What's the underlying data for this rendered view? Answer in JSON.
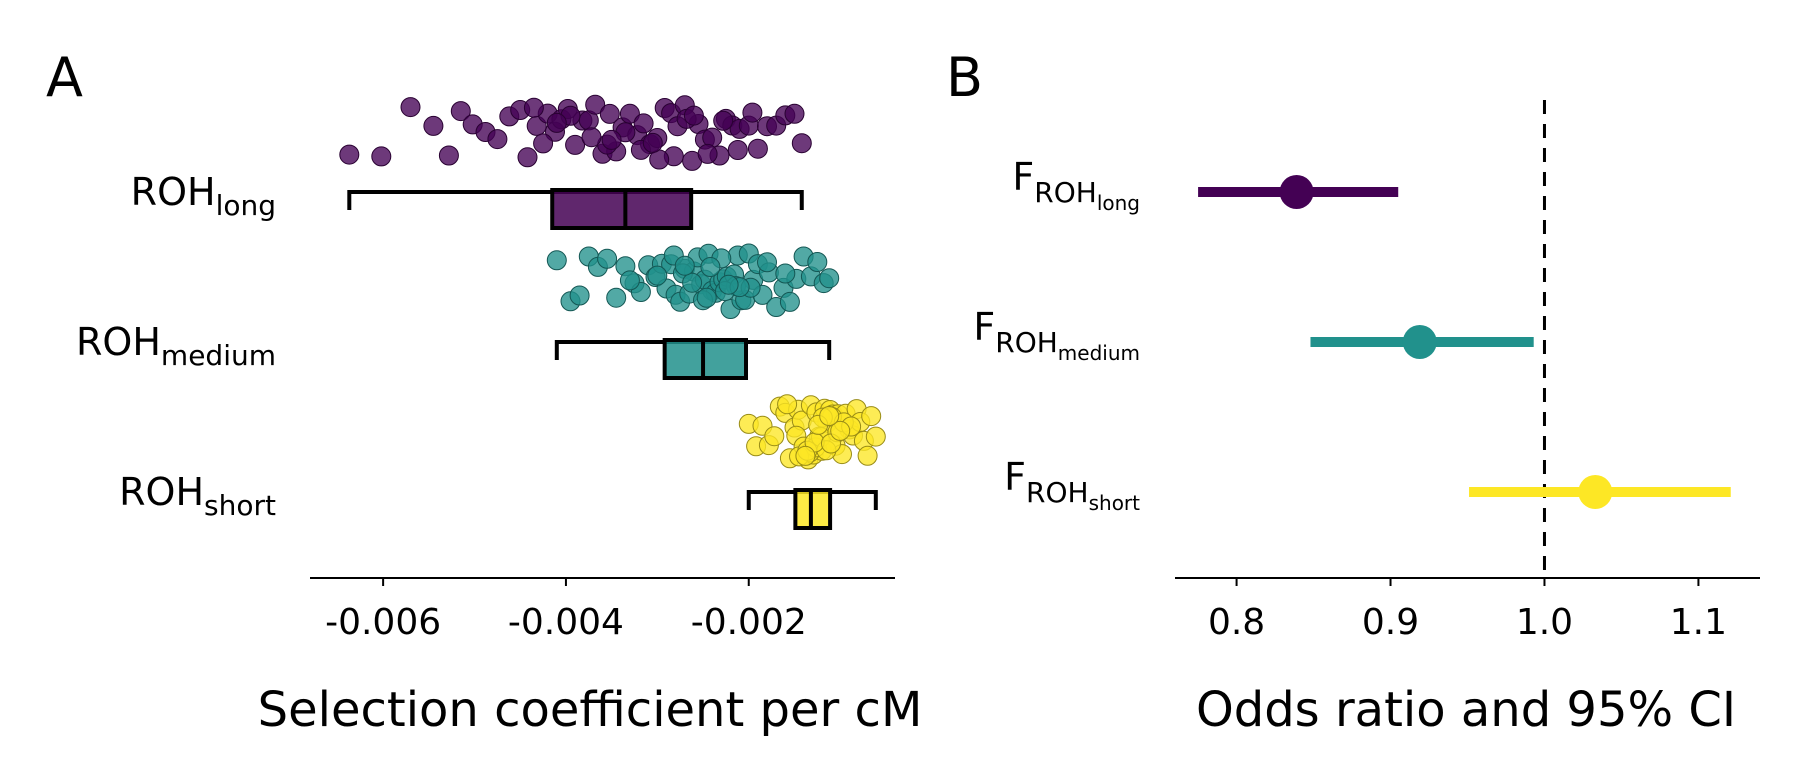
{
  "chart_data": [
    {
      "panel": "A",
      "type": "scatter",
      "subtype": "jittered points with box plot",
      "xlabel": "Selection coefficient per cM",
      "ylabel": "",
      "xlim": [
        -0.0068,
        -0.0004
      ],
      "xticks": [
        -0.006,
        -0.004,
        -0.002
      ],
      "xtick_labels": [
        "-0.006",
        "-0.004",
        "-0.002"
      ],
      "grid": false,
      "legend": "none",
      "categories": [
        {
          "main": "ROH",
          "sub": "long"
        },
        {
          "main": "ROH",
          "sub": "medium"
        },
        {
          "main": "ROH",
          "sub": "short"
        }
      ],
      "series": [
        {
          "color": "#440154",
          "box": {
            "whisker_low": -0.00637,
            "q1": -0.00415,
            "median": -0.00335,
            "q3": -0.00263,
            "whisker_high": -0.00142
          },
          "points": [
            -0.00637,
            -0.00602,
            -0.0057,
            -0.00545,
            -0.00528,
            -0.00515,
            -0.00502,
            -0.00488,
            -0.00475,
            -0.00462,
            -0.0045,
            -0.00442,
            -0.00432,
            -0.0042,
            -0.00412,
            -0.00405,
            -0.00398,
            -0.0039,
            -0.00382,
            -0.00375,
            -0.00368,
            -0.0036,
            -0.00352,
            -0.00345,
            -0.00338,
            -0.0033,
            -0.00322,
            -0.00315,
            -0.00308,
            -0.003,
            -0.00292,
            -0.00285,
            -0.00278,
            -0.0027,
            -0.00262,
            -0.00255,
            -0.00248,
            -0.0024,
            -0.00232,
            -0.00225,
            -0.00218,
            -0.0021,
            -0.002,
            -0.0019,
            -0.0018,
            -0.0017,
            -0.0016,
            -0.0015,
            -0.00142,
            -0.00435,
            -0.00395,
            -0.00355,
            -0.00318,
            -0.00282,
            -0.00245,
            -0.00212,
            -0.00425,
            -0.00372,
            -0.00335,
            -0.00298,
            -0.00268,
            -0.00228,
            -0.00196,
            -0.0041,
            -0.0035,
            -0.00305,
            -0.0026
          ]
        },
        {
          "color": "#21918c",
          "box": {
            "whisker_low": -0.0041,
            "q1": -0.00292,
            "median": -0.0025,
            "q3": -0.00203,
            "whisker_high": -0.00112
          },
          "points": [
            -0.0041,
            -0.00395,
            -0.00385,
            -0.00375,
            -0.00365,
            -0.00355,
            -0.00345,
            -0.00335,
            -0.00325,
            -0.00318,
            -0.0031,
            -0.00302,
            -0.00295,
            -0.0029,
            -0.00285,
            -0.0028,
            -0.00275,
            -0.0027,
            -0.00265,
            -0.0026,
            -0.00256,
            -0.00252,
            -0.00248,
            -0.00244,
            -0.0024,
            -0.00236,
            -0.00232,
            -0.00228,
            -0.00224,
            -0.0022,
            -0.00216,
            -0.00212,
            -0.00208,
            -0.00204,
            -0.002,
            -0.00195,
            -0.0019,
            -0.00185,
            -0.00178,
            -0.0017,
            -0.00162,
            -0.00155,
            -0.00148,
            -0.0014,
            -0.00132,
            -0.00125,
            -0.00118,
            -0.00112,
            -0.0033,
            -0.003,
            -0.00272,
            -0.0025,
            -0.0023,
            -0.00214,
            -0.00198,
            -0.00282,
            -0.00262,
            -0.00242,
            -0.00226,
            -0.0021,
            -0.0018,
            -0.0016,
            -0.0027,
            -0.00246,
            -0.00222
          ]
        },
        {
          "color": "#fde725",
          "box": {
            "whisker_low": -0.002,
            "q1": -0.00149,
            "median": -0.00132,
            "q3": -0.00111,
            "whisker_high": -0.00061
          },
          "points": [
            -0.002,
            -0.00192,
            -0.00185,
            -0.00178,
            -0.00172,
            -0.00166,
            -0.0016,
            -0.00155,
            -0.0015,
            -0.00146,
            -0.00142,
            -0.00138,
            -0.00135,
            -0.00132,
            -0.00129,
            -0.00126,
            -0.00123,
            -0.0012,
            -0.00117,
            -0.00114,
            -0.00111,
            -0.00108,
            -0.00105,
            -0.00102,
            -0.00098,
            -0.00094,
            -0.0009,
            -0.00086,
            -0.00082,
            -0.00078,
            -0.00074,
            -0.0007,
            -0.00066,
            -0.00061,
            -0.00158,
            -0.00148,
            -0.0014,
            -0.00133,
            -0.00127,
            -0.00121,
            -0.00115,
            -0.00109,
            -0.00103,
            -0.00096,
            -0.00088,
            -0.00145,
            -0.00136,
            -0.00128,
            -0.00119,
            -0.0011,
            -0.001,
            -0.00138,
            -0.00124,
            -0.00112
          ]
        }
      ]
    },
    {
      "panel": "B",
      "type": "scatter",
      "subtype": "forest plot (point estimate with 95% CI)",
      "xlabel": "Odds ratio and 95% CI",
      "ylabel": "",
      "xlim": [
        0.76,
        1.14
      ],
      "xticks": [
        0.8,
        0.9,
        1.0,
        1.1
      ],
      "xtick_labels": [
        "0.8",
        "0.9",
        "1.0",
        "1.1"
      ],
      "reference_line": 1.0,
      "grid": false,
      "legend": "none",
      "categories": [
        {
          "main": "F",
          "sub": "ROH",
          "subsub": "long"
        },
        {
          "main": "F",
          "sub": "ROH",
          "subsub": "medium"
        },
        {
          "main": "F",
          "sub": "ROH",
          "subsub": "short"
        }
      ],
      "series": [
        {
          "color": "#440154",
          "estimate": 0.839,
          "ci_low": 0.775,
          "ci_high": 0.905
        },
        {
          "color": "#21918c",
          "estimate": 0.919,
          "ci_low": 0.848,
          "ci_high": 0.993
        },
        {
          "color": "#fde725",
          "estimate": 1.033,
          "ci_low": 0.951,
          "ci_high": 1.121
        }
      ]
    }
  ],
  "panels": {
    "a_label": "A",
    "b_label": "B"
  }
}
